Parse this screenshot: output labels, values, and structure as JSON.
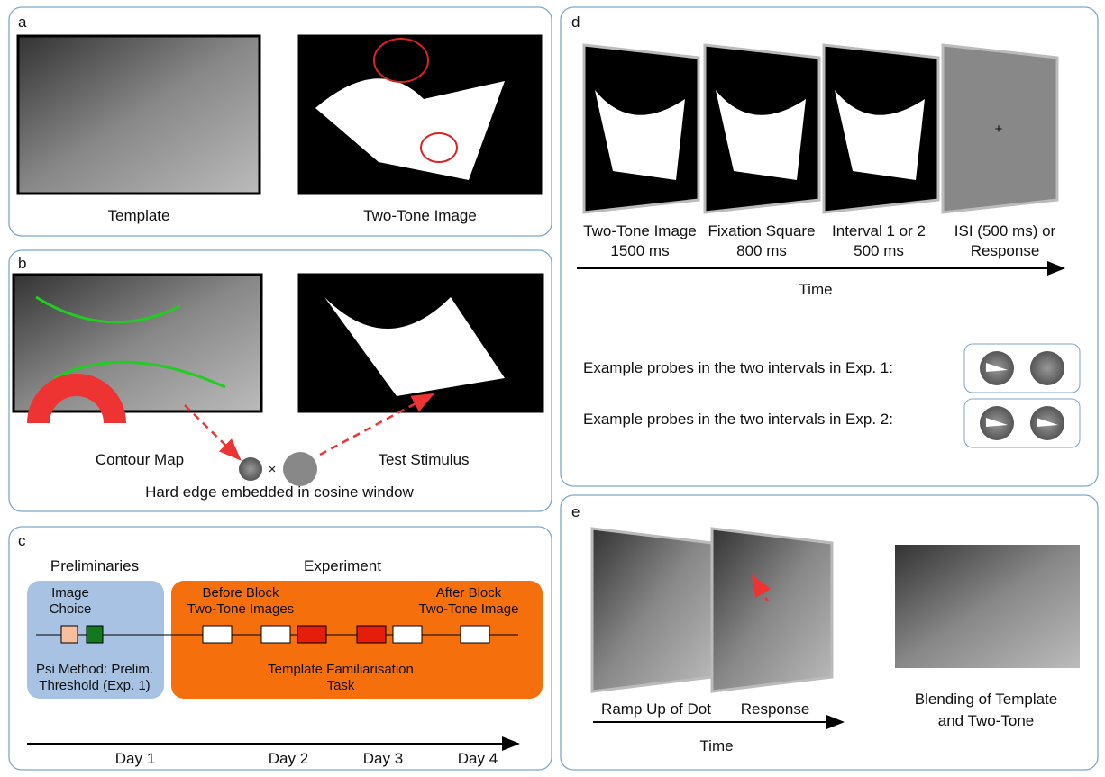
{
  "panels": {
    "a": {
      "label": "a",
      "captions": [
        "Template",
        "Two-Tone Image"
      ]
    },
    "b": {
      "label": "b",
      "captions": [
        "Contour Map",
        "Test Stimulus"
      ],
      "note": "Hard edge embedded in cosine window"
    },
    "c": {
      "label": "c",
      "preliminaries": {
        "title": "Preliminaries",
        "image_choice": [
          "Image",
          "Choice"
        ],
        "psi": [
          "Psi Method: Prelim.",
          "Threshold (Exp. 1)"
        ]
      },
      "experiment": {
        "title": "Experiment",
        "before": [
          "Before Block",
          "Two-Tone Images"
        ],
        "after": [
          "After Block",
          "Two-Tone Image"
        ],
        "task": [
          "Template Familiarisation",
          "Task"
        ]
      },
      "days": [
        "Day 1",
        "Day 2",
        "Day 3",
        "Day 4"
      ]
    },
    "d": {
      "label": "d",
      "screens": [
        [
          "Two-Tone Image",
          "1500 ms"
        ],
        [
          "Fixation Square",
          "800 ms"
        ],
        [
          "Interval 1 or 2",
          "500 ms"
        ],
        [
          "ISI (500 ms) or",
          "Response"
        ]
      ],
      "axis": "Time",
      "probes": [
        "Example probes in the two intervals in Exp. 1:",
        "Example probes in the two intervals in Exp. 2:"
      ]
    },
    "e": {
      "label": "e",
      "screens": [
        "Ramp Up of Dot",
        "Response"
      ],
      "axis": "Time",
      "blend": [
        "Blending of Template",
        "and Two-Tone"
      ]
    }
  }
}
